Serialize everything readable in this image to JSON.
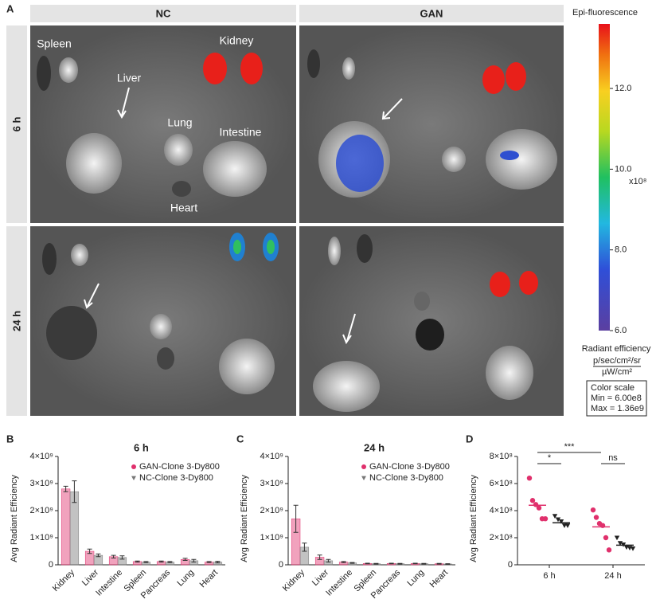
{
  "panel_a": {
    "label": "A",
    "columns": [
      "NC",
      "GAN"
    ],
    "rows": [
      "6 h",
      "24 h"
    ],
    "organ_labels": [
      "Spleen",
      "Kidney",
      "Liver",
      "Lung",
      "Intestine",
      "Heart"
    ],
    "colorbar": {
      "title": "Epi-fluorescence",
      "lim": [
        6.0,
        13.6
      ],
      "ticks": [
        {
          "value": 6,
          "label": "6.0"
        },
        {
          "value": 8,
          "label": "8.0"
        },
        {
          "value": 10,
          "label": "10.0"
        },
        {
          "value": 12,
          "label": "12.0"
        }
      ],
      "multiplier": "x10⁸",
      "unit_label": "Radiant efficiency",
      "unit_numerator": "p/sec/cm²/sr",
      "unit_denominator": "µW/cm²",
      "color_scale": [
        "Color scale",
        "Min = 6.00e8",
        "Max = 1.36e9"
      ]
    }
  },
  "chart_data": [
    {
      "type": "bar",
      "panel_label": "B",
      "title": "6 h",
      "ylabel": "Avg Radiant Efficiency",
      "categories": [
        "Kidney",
        "Liver",
        "Intestine",
        "Spleen",
        "Pancreas",
        "Lung",
        "Heart"
      ],
      "series": [
        {
          "name": "GAN-Clone 3-Dy800",
          "color": "#e0306c",
          "marker": "circle",
          "values": [
            2800000000,
            500000000,
            300000000,
            120000000,
            120000000,
            200000000,
            100000000
          ],
          "errors": [
            100000000,
            80000000,
            50000000,
            20000000,
            20000000,
            40000000,
            20000000
          ]
        },
        {
          "name": "NC-Clone 3-Dy800",
          "color": "#777777",
          "marker": "triangle",
          "values": [
            2700000000,
            350000000,
            270000000,
            100000000,
            100000000,
            150000000,
            100000000
          ],
          "errors": [
            400000000,
            50000000,
            60000000,
            20000000,
            20000000,
            50000000,
            30000000
          ]
        }
      ],
      "ylim": [
        0,
        4000000000
      ],
      "yticks": [
        0,
        {
          "value": 1000000000,
          "label": "1×10⁹"
        },
        {
          "value": 2000000000,
          "label": "2×10⁹"
        },
        {
          "value": 3000000000,
          "label": "3×10⁹"
        },
        {
          "value": 4000000000,
          "label": "4×10⁹"
        }
      ]
    },
    {
      "type": "bar",
      "panel_label": "C",
      "title": "24 h",
      "ylabel": "Avg Radiant Efficiency",
      "categories": [
        "Kidney",
        "Liver",
        "Intestine",
        "Spleen",
        "Pancreas",
        "Lung",
        "Heart"
      ],
      "series": [
        {
          "name": "GAN-Clone 3-Dy800",
          "color": "#e0306c",
          "marker": "circle",
          "values": [
            1700000000,
            280000000,
            100000000,
            50000000,
            50000000,
            50000000,
            40000000
          ],
          "errors": [
            500000000,
            80000000,
            20000000,
            10000000,
            10000000,
            10000000,
            10000000
          ]
        },
        {
          "name": "NC-Clone 3-Dy800",
          "color": "#777777",
          "marker": "triangle",
          "values": [
            650000000,
            150000000,
            70000000,
            40000000,
            40000000,
            40000000,
            30000000
          ],
          "errors": [
            150000000,
            50000000,
            15000000,
            10000000,
            10000000,
            10000000,
            10000000
          ]
        }
      ],
      "ylim": [
        0,
        4000000000
      ],
      "yticks": [
        0,
        {
          "value": 1000000000,
          "label": "1×10⁹"
        },
        {
          "value": 2000000000,
          "label": "2×10⁹"
        },
        {
          "value": 3000000000,
          "label": "3×10⁹"
        },
        {
          "value": 4000000000,
          "label": "4×10⁹"
        }
      ]
    },
    {
      "type": "dot",
      "panel_label": "D",
      "ylabel": "Avg Radiant Efficiency",
      "categories": [
        "6 h",
        "24 h"
      ],
      "series": [
        {
          "color": "#e0306c",
          "marker": "circle",
          "values": [
            [
              640000000,
              475000000,
              445000000,
              420000000,
              340000000,
              340000000
            ],
            [
              405000000,
              350000000,
              305000000,
              290000000,
              200000000,
              110000000
            ]
          ],
          "means": [
            440000000,
            280000000
          ]
        },
        {
          "color": "#222222",
          "marker": "triangle",
          "values": [
            [
              360000000,
              335000000,
              320000000,
              290000000,
              290000000
            ],
            [
              200000000,
              160000000,
              150000000,
              130000000,
              125000000,
              120000000
            ]
          ],
          "means": [
            310000000,
            145000000
          ]
        }
      ],
      "annotations": [
        "*",
        "***",
        "ns"
      ],
      "ylim": [
        0,
        800000000
      ],
      "yticks": [
        0,
        {
          "value": 200000000,
          "label": "2×10⁸"
        },
        {
          "value": 400000000,
          "label": "4×10⁸"
        },
        {
          "value": 600000000,
          "label": "6×10⁸"
        },
        {
          "value": 800000000,
          "label": "8×10⁸"
        }
      ]
    }
  ]
}
